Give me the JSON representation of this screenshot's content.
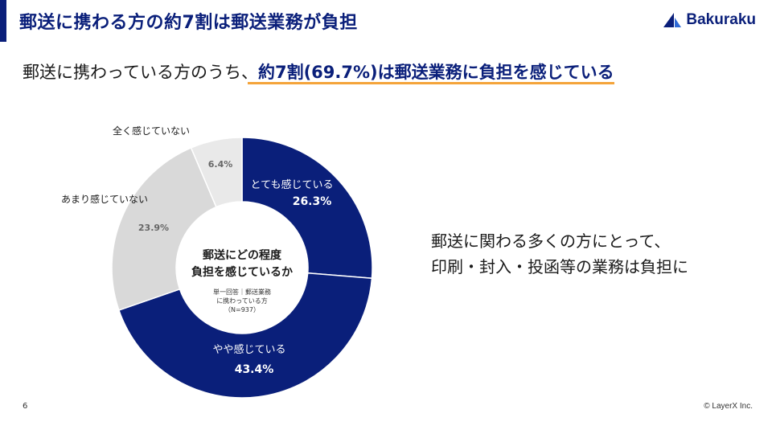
{
  "header": {
    "title": "郵送に携わる方の約7割は郵送業務が負担",
    "logo_text": "Bakuraku",
    "logo_icon": "bakuraku-logo-icon"
  },
  "headline": {
    "prefix": "郵送に携わっている方のうち、",
    "highlight": "約7割(69.7%)は郵送業務に負担を感じている"
  },
  "colors": {
    "navy": "#0a1f7a",
    "light_grey": "#d9d9d9",
    "lighter_grey": "#e9e9e9",
    "underline": "#f4a43a"
  },
  "chart_data": {
    "type": "pie",
    "title": "郵送にどの程度負担を感じているか",
    "title_lines": [
      "郵送にどの程度",
      "負担を感じているか"
    ],
    "note_lines": [
      "単一回答｜郵送業務",
      "に携わっている方",
      "（N=937）"
    ],
    "categories": [
      "とても感じている",
      "やや感じている",
      "あまり感じていない",
      "全く感じていない"
    ],
    "values": [
      26.3,
      43.4,
      23.9,
      6.4
    ],
    "value_labels": [
      "26.3%",
      "43.4%",
      "23.9%",
      "6.4%"
    ],
    "colors": [
      "#0a1f7a",
      "#0a1f7a",
      "#d9d9d9",
      "#e9e9e9"
    ]
  },
  "side_text": {
    "line1": "郵送に関わる多くの方にとって、",
    "line2": "印刷・封入・投函等の業務は負担に"
  },
  "footer": {
    "page_number": "6",
    "copyright": "© LayerX Inc."
  }
}
